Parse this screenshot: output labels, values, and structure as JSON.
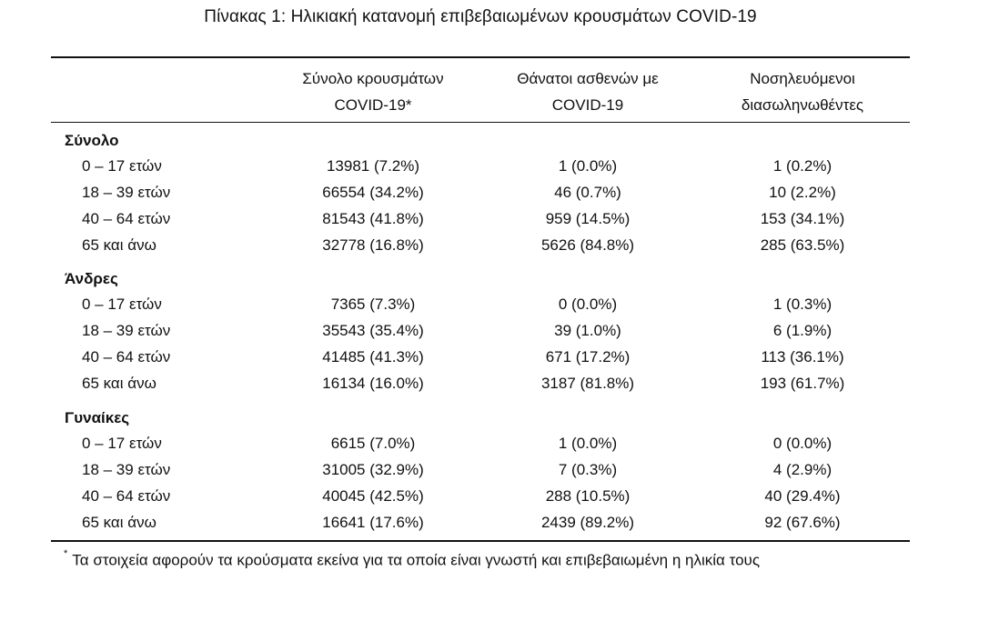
{
  "title": "Πίνακας 1: Ηλικιακή κατανομή επιβεβαιωμένων κρουσμάτων COVID-19",
  "columns": [
    [
      "Σύνολο κρουσμάτων",
      "COVID-19*"
    ],
    [
      "Θάνατοι ασθενών με",
      "COVID-19"
    ],
    [
      "Νοσηλευόμενοι",
      "διασωληνωθέντες"
    ]
  ],
  "groups": [
    {
      "name": "Σύνολο",
      "rows": [
        [
          "0 – 17 ετών",
          "13981 (7.2%)",
          "1 (0.0%)",
          "1 (0.2%)"
        ],
        [
          "18 – 39 ετών",
          "66554 (34.2%)",
          "46 (0.7%)",
          "10 (2.2%)"
        ],
        [
          "40 – 64 ετών",
          "81543 (41.8%)",
          "959 (14.5%)",
          "153 (34.1%)"
        ],
        [
          "65 και άνω",
          "32778 (16.8%)",
          "5626 (84.8%)",
          "285 (63.5%)"
        ]
      ]
    },
    {
      "name": "Άνδρες",
      "rows": [
        [
          "0 – 17 ετών",
          "7365 (7.3%)",
          "0 (0.0%)",
          "1 (0.3%)"
        ],
        [
          "18 – 39 ετών",
          "35543 (35.4%)",
          "39 (1.0%)",
          "6 (1.9%)"
        ],
        [
          "40 – 64 ετών",
          "41485 (41.3%)",
          "671 (17.2%)",
          "113 (36.1%)"
        ],
        [
          "65 και άνω",
          "16134 (16.0%)",
          "3187 (81.8%)",
          "193 (61.7%)"
        ]
      ]
    },
    {
      "name": "Γυναίκες",
      "rows": [
        [
          "0 – 17 ετών",
          "6615 (7.0%)",
          "1 (0.0%)",
          "0 (0.0%)"
        ],
        [
          "18 – 39 ετών",
          "31005 (32.9%)",
          "7 (0.3%)",
          "4 (2.9%)"
        ],
        [
          "40 – 64 ετών",
          "40045 (42.5%)",
          "288 (10.5%)",
          "40 (29.4%)"
        ],
        [
          "65 και άνω",
          "16641 (17.6%)",
          "2439 (89.2%)",
          "92 (67.6%)"
        ]
      ]
    }
  ],
  "footnote": {
    "mark": "*",
    "text": "Τα στοιχεία αφορούν τα κρούσματα εκείνα για τα οποία είναι γνωστή και επιβεβαιωμένη η ηλικία τους"
  }
}
